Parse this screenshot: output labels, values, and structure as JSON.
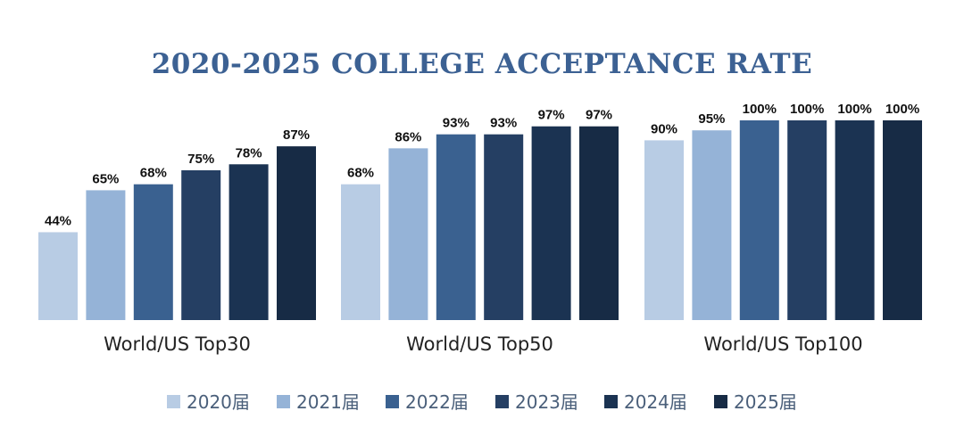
{
  "chart_data": {
    "type": "bar",
    "title": "2020-2025 COLLEGE ACCEPTANCE RATE",
    "categories": [
      "World/US Top30",
      "World/US Top50",
      "World/US Top100"
    ],
    "series": [
      {
        "name": "2020届",
        "color": "#b8cce4",
        "values": [
          44,
          68,
          90
        ],
        "labels": [
          "44%",
          "68%",
          "90%"
        ]
      },
      {
        "name": "2021届",
        "color": "#95b3d7",
        "values": [
          65,
          86,
          95
        ],
        "labels": [
          "65%",
          "86%",
          "95%"
        ]
      },
      {
        "name": "2022届",
        "color": "#3a6190",
        "values": [
          68,
          93,
          100
        ],
        "labels": [
          "68%",
          "93%",
          "100%"
        ]
      },
      {
        "name": "2023届",
        "color": "#253f63",
        "values": [
          75,
          93,
          100
        ],
        "labels": [
          "75%",
          "93%",
          "100%"
        ]
      },
      {
        "name": "2024届",
        "color": "#1b3352",
        "values": [
          78,
          97,
          100
        ],
        "labels": [
          "78%",
          "97%",
          "100%"
        ]
      },
      {
        "name": "2025届",
        "color": "#172b45",
        "values": [
          87,
          97,
          100
        ],
        "labels": [
          "87%",
          "97%",
          "100%"
        ]
      }
    ],
    "ylim": [
      0,
      100
    ],
    "xlabel": "",
    "ylabel": "",
    "grid": false,
    "legend_position": "bottom"
  }
}
